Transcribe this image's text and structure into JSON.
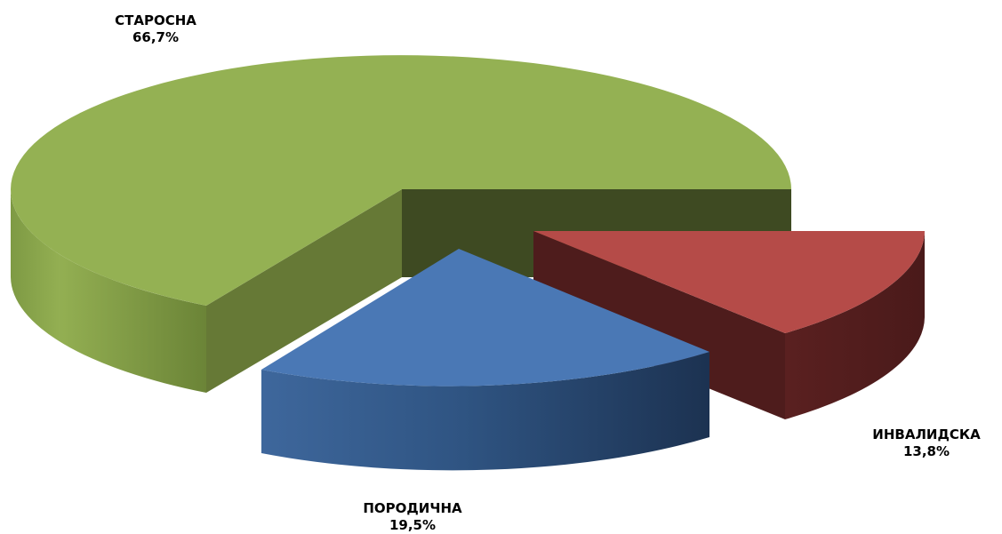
{
  "chart_data": {
    "type": "pie",
    "style": "3d-exploded",
    "legend": "none",
    "slices": [
      {
        "label": "СТАРОСНА",
        "value": 66.7,
        "value_label": "66,7%",
        "color": "#94B153"
      },
      {
        "label": "ПОРОДИЧНА",
        "value": 19.5,
        "value_label": "19,5%",
        "color": "#4A78B5"
      },
      {
        "label": "ИНВАЛИДСКА",
        "value": 13.8,
        "value_label": "13,8%",
        "color": "#B54B48"
      }
    ]
  }
}
